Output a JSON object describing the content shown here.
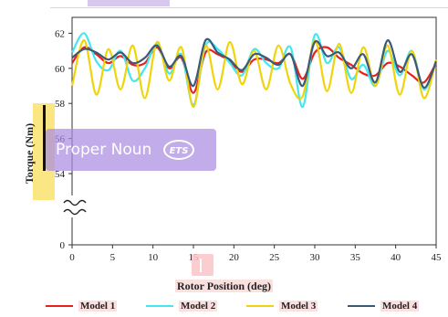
{
  "overlay": {
    "text": "Proper Noun",
    "logo_text": "ETS"
  },
  "chart_data": {
    "type": "line",
    "title": "",
    "xlabel": "Rotor Position (deg)",
    "ylabel": "Torque (Nm)",
    "xlim": [
      0,
      45
    ],
    "ylim": [
      0,
      63
    ],
    "axis_break": true,
    "xticks": [
      "0",
      "5",
      "10",
      "15",
      "20",
      "25",
      "30",
      "35",
      "40",
      "45"
    ],
    "yticks": [
      "0",
      "54",
      "56",
      "58",
      "60",
      "62"
    ],
    "grid": false,
    "legend_position": "bottom",
    "x": [
      0,
      1.5,
      3,
      4.5,
      6,
      7.5,
      9,
      10.5,
      12,
      13.5,
      15,
      16.5,
      18,
      19.5,
      21,
      22.5,
      24,
      25.5,
      27,
      28.5,
      30,
      31.5,
      33,
      34.5,
      36,
      37.5,
      39,
      40.5,
      42,
      43.5,
      45
    ],
    "series": [
      {
        "name": "Model 1",
        "color": "#e8201e",
        "values": [
          60.3,
          61.2,
          60.8,
          60.3,
          60.7,
          60.2,
          60.3,
          61.2,
          60.0,
          60.6,
          58.6,
          60.9,
          60.8,
          60.4,
          59.8,
          60.5,
          60.5,
          60.3,
          60.8,
          59.4,
          60.9,
          61.2,
          60.6,
          60.2,
          59.7,
          59.6,
          60.3,
          60.1,
          59.6,
          59.2,
          60.3
        ]
      },
      {
        "name": "Model 2",
        "color": "#45e6ee",
        "values": [
          60.9,
          62.0,
          60.4,
          59.9,
          61.0,
          59.3,
          60.0,
          61.4,
          59.7,
          60.8,
          57.9,
          61.3,
          61.1,
          60.3,
          59.6,
          61.1,
          60.3,
          60.0,
          61.2,
          57.8,
          61.9,
          60.3,
          61.2,
          59.4,
          60.2,
          59.0,
          61.0,
          59.6,
          61.0,
          58.8,
          60.4
        ]
      },
      {
        "name": "Model 3",
        "color": "#f0d40a",
        "values": [
          59.0,
          61.6,
          58.5,
          61.1,
          58.8,
          61.3,
          58.3,
          61.5,
          59.3,
          61.2,
          57.8,
          61.3,
          58.8,
          61.5,
          59.1,
          61.0,
          58.8,
          61.3,
          59.1,
          58.4,
          61.6,
          58.7,
          61.4,
          58.6,
          61.2,
          59.0,
          61.3,
          58.5,
          61.0,
          58.3,
          60.5
        ]
      },
      {
        "name": "Model 4",
        "color": "#3c5a78",
        "values": [
          60.6,
          61.1,
          60.9,
          60.5,
          60.9,
          60.3,
          60.6,
          61.3,
          60.1,
          60.7,
          59.0,
          61.6,
          60.9,
          60.5,
          59.9,
          60.8,
          60.6,
          60.2,
          60.8,
          59.0,
          61.5,
          60.7,
          60.9,
          60.0,
          60.8,
          59.2,
          61.6,
          59.8,
          60.8,
          58.9,
          60.4
        ]
      }
    ]
  }
}
